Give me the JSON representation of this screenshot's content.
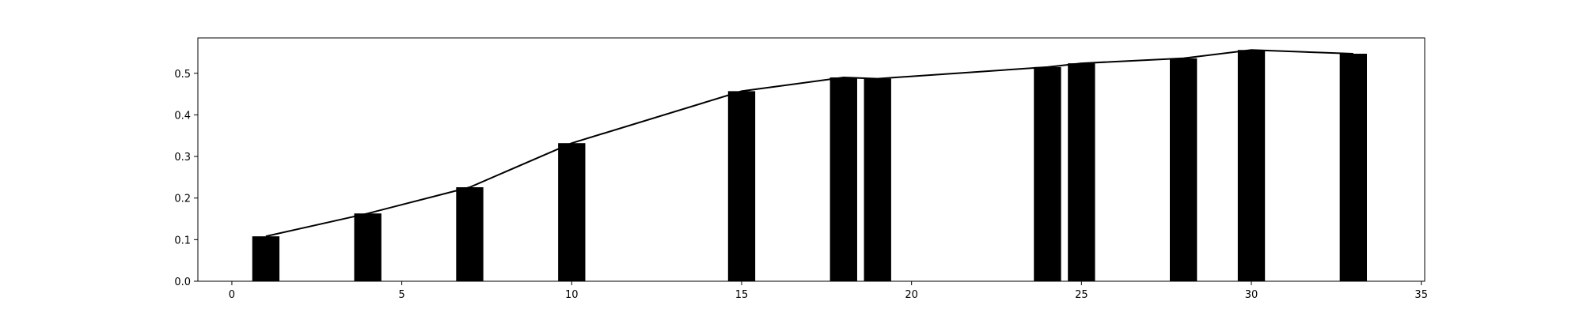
{
  "chart_data": {
    "type": "bar",
    "title": "",
    "xlabel": "",
    "ylabel": "",
    "xlim": [
      -1,
      35.1
    ],
    "ylim": [
      0,
      0.585
    ],
    "grid": false,
    "x_ticks": [
      0,
      5,
      10,
      15,
      20,
      25,
      30,
      35
    ],
    "y_ticks": [
      0.0,
      0.1,
      0.2,
      0.3,
      0.4,
      0.5
    ],
    "x_tick_labels": [
      "0",
      "5",
      "10",
      "15",
      "20",
      "25",
      "30",
      "35"
    ],
    "y_tick_labels": [
      "0.0",
      "0.1",
      "0.2",
      "0.3",
      "0.4",
      "0.5"
    ],
    "bar_width": 0.8,
    "bar_color": "#000000",
    "line_color": "#000000",
    "series": [
      {
        "type": "bar",
        "x": [
          1,
          4,
          7,
          10,
          15,
          18,
          19,
          24,
          25,
          28,
          30,
          33
        ],
        "values": [
          0.108,
          0.163,
          0.226,
          0.332,
          0.457,
          0.49,
          0.487,
          0.515,
          0.524,
          0.536,
          0.556,
          0.547
        ]
      },
      {
        "type": "line",
        "x": [
          1,
          4,
          7,
          10,
          15,
          18,
          19,
          24,
          25,
          28,
          30,
          33
        ],
        "values": [
          0.108,
          0.163,
          0.226,
          0.332,
          0.457,
          0.49,
          0.487,
          0.515,
          0.524,
          0.536,
          0.556,
          0.547
        ]
      }
    ]
  }
}
